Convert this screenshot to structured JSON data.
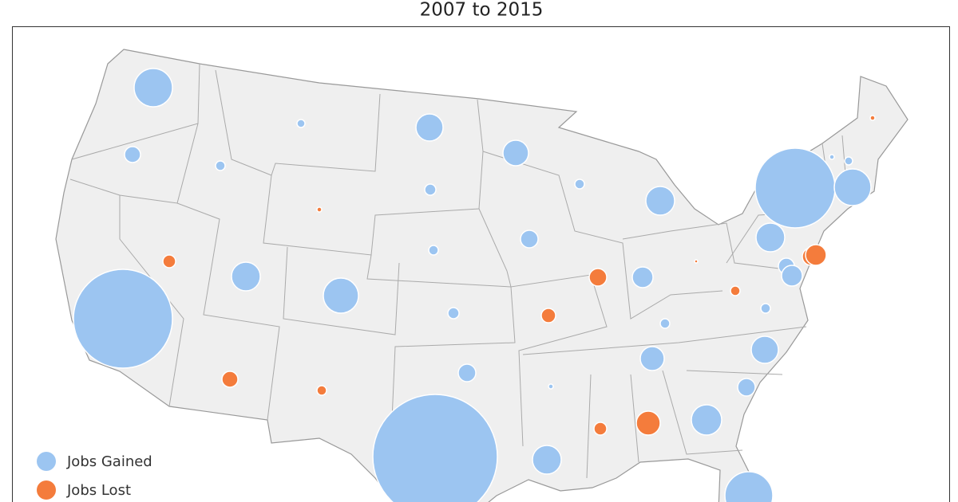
{
  "title": "2007 to 2015",
  "legend": {
    "items": [
      "Jobs Gained",
      "Jobs Lost"
    ]
  }
}
